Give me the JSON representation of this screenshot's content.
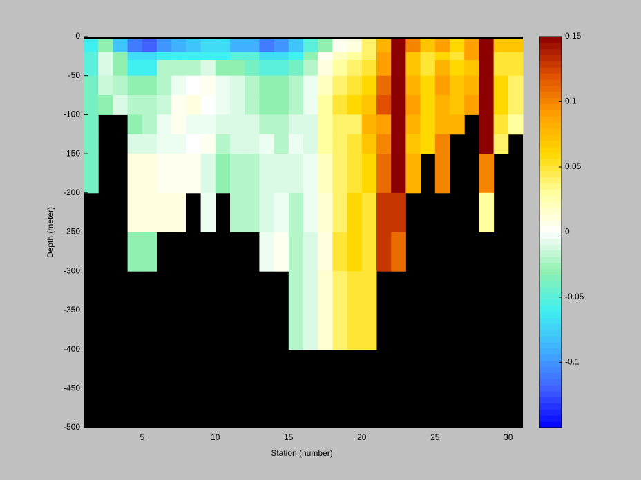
{
  "chart_data": {
    "type": "heatmap",
    "xlabel": "Station (number)",
    "ylabel": "Depth (meter)",
    "xlim": [
      1,
      31
    ],
    "xticks": [
      5,
      10,
      15,
      20,
      25,
      30
    ],
    "ylim": [
      -500,
      0
    ],
    "yticks": [
      0,
      -50,
      -100,
      -150,
      -200,
      -250,
      -300,
      -350,
      -400,
      -450,
      -500
    ],
    "x_edges": [
      1,
      2,
      3,
      4,
      5,
      6,
      7,
      8,
      9,
      10,
      11,
      12,
      13,
      14,
      15,
      16,
      17,
      18,
      19,
      20,
      21,
      22,
      23,
      24,
      25,
      26,
      27,
      28,
      29,
      30,
      31
    ],
    "depth_edges": [
      -3,
      -20,
      -30,
      -50,
      -75,
      -100,
      -125,
      -150,
      -200,
      -250,
      -300,
      -400
    ],
    "clim": [
      -0.15,
      0.15
    ],
    "cticks": [
      -0.1,
      -0.05,
      0,
      0.05,
      0.1,
      0.15
    ],
    "colormap": [
      "#0000ff",
      "#4060ff",
      "#40b0ff",
      "#40f0f0",
      "#90f0b0",
      "#ffffff",
      "#ffffa0",
      "#ffd800",
      "#ffa000",
      "#e05000",
      "#8c0000"
    ],
    "values": [
      [
        -0.06,
        -0.05,
        -0.05,
        -0.04,
        -0.04,
        -0.04,
        -0.04,
        -0.04,
        null,
        null,
        null
      ],
      [
        -0.03,
        -0.01,
        -0.01,
        -0.015,
        -0.03,
        null,
        null,
        null,
        null,
        null,
        null
      ],
      [
        -0.08,
        -0.03,
        -0.03,
        -0.02,
        -0.01,
        null,
        null,
        null,
        null,
        null,
        null
      ],
      [
        -0.11,
        -0.07,
        -0.06,
        -0.03,
        -0.02,
        -0.03,
        -0.01,
        0.01,
        0.01,
        -0.03,
        null
      ],
      [
        -0.12,
        -0.07,
        -0.06,
        -0.03,
        -0.02,
        -0.02,
        -0.01,
        0.01,
        0.01,
        -0.03,
        null
      ],
      [
        -0.1,
        -0.06,
        -0.02,
        -0.02,
        -0.015,
        -0.005,
        -0.005,
        0.005,
        0.01,
        null,
        null
      ],
      [
        -0.09,
        -0.06,
        -0.02,
        -0.005,
        0.005,
        0.005,
        -0.005,
        0.005,
        0.01,
        null,
        null
      ],
      [
        -0.08,
        -0.06,
        -0.02,
        0,
        0.01,
        -0.005,
        0,
        0.005,
        null,
        null,
        null
      ],
      [
        -0.07,
        -0.06,
        -0.01,
        0.005,
        0,
        -0.005,
        0.005,
        -0.01,
        -0.005,
        null,
        null
      ],
      [
        -0.07,
        -0.06,
        -0.03,
        -0.005,
        -0.005,
        -0.01,
        -0.02,
        -0.03,
        null,
        null,
        null
      ],
      [
        -0.09,
        -0.05,
        -0.03,
        -0.01,
        -0.01,
        -0.01,
        -0.01,
        -0.02,
        -0.02,
        null,
        null
      ],
      [
        -0.09,
        -0.05,
        -0.04,
        -0.02,
        -0.02,
        -0.01,
        -0.01,
        -0.02,
        -0.02,
        null,
        null
      ],
      [
        -0.11,
        -0.07,
        -0.05,
        -0.03,
        -0.03,
        -0.02,
        -0.005,
        -0.01,
        -0.01,
        -0.005,
        null
      ],
      [
        -0.1,
        -0.07,
        -0.05,
        -0.03,
        -0.03,
        -0.02,
        -0.02,
        -0.01,
        -0.005,
        0.005,
        null
      ],
      [
        -0.08,
        -0.06,
        -0.04,
        -0.02,
        -0.02,
        -0.01,
        -0.005,
        -0.01,
        -0.02,
        -0.02,
        -0.02
      ],
      [
        -0.05,
        -0.03,
        -0.02,
        -0.005,
        -0.005,
        -0.01,
        -0.01,
        -0.005,
        -0.005,
        -0.01,
        -0.01
      ],
      [
        -0.03,
        0.005,
        0.01,
        0.02,
        0.03,
        0.03,
        0.03,
        0.02,
        0.015,
        0.01,
        0.015
      ],
      [
        0.005,
        0.02,
        0.03,
        0.04,
        0.05,
        0.04,
        0.04,
        0.04,
        0.04,
        0.05,
        0.04
      ],
      [
        0.01,
        0.03,
        0.04,
        0.05,
        0.06,
        0.04,
        0.05,
        0.05,
        0.06,
        0.06,
        0.05
      ],
      [
        0.04,
        0.04,
        0.05,
        0.06,
        0.07,
        0.08,
        0.07,
        0.06,
        0.05,
        0.05,
        0.05
      ],
      [
        0.08,
        0.09,
        0.09,
        0.11,
        0.12,
        0.09,
        0.1,
        0.11,
        0.13,
        0.13,
        null
      ],
      [
        0.15,
        0.15,
        0.15,
        0.15,
        0.15,
        0.15,
        0.15,
        0.15,
        0.13,
        0.11,
        null
      ],
      [
        0.1,
        0.07,
        0.07,
        0.08,
        0.09,
        0.08,
        0.07,
        0.08,
        null,
        null,
        null
      ],
      [
        0.07,
        0.05,
        0.05,
        0.06,
        0.06,
        0.06,
        0.06,
        null,
        null,
        null,
        null
      ],
      [
        0.09,
        0.06,
        0.08,
        0.09,
        0.08,
        0.08,
        0.1,
        0.1,
        null,
        null,
        null
      ],
      [
        0.06,
        0.05,
        0.06,
        0.07,
        0.07,
        0.08,
        null,
        null,
        null,
        null,
        null
      ],
      [
        0.09,
        0.09,
        0.07,
        0.08,
        0.09,
        null,
        null,
        null,
        null,
        null,
        null
      ],
      [
        0.15,
        0.15,
        0.15,
        0.15,
        0.15,
        0.15,
        0.15,
        0.1,
        0.03,
        null,
        null
      ],
      [
        0.07,
        0.05,
        0.05,
        0.06,
        0.06,
        0.05,
        0.04,
        null,
        null,
        null,
        null
      ],
      [
        0.07,
        0.05,
        0.05,
        0.04,
        0.04,
        0.03,
        null,
        null,
        null,
        null,
        null
      ]
    ]
  }
}
